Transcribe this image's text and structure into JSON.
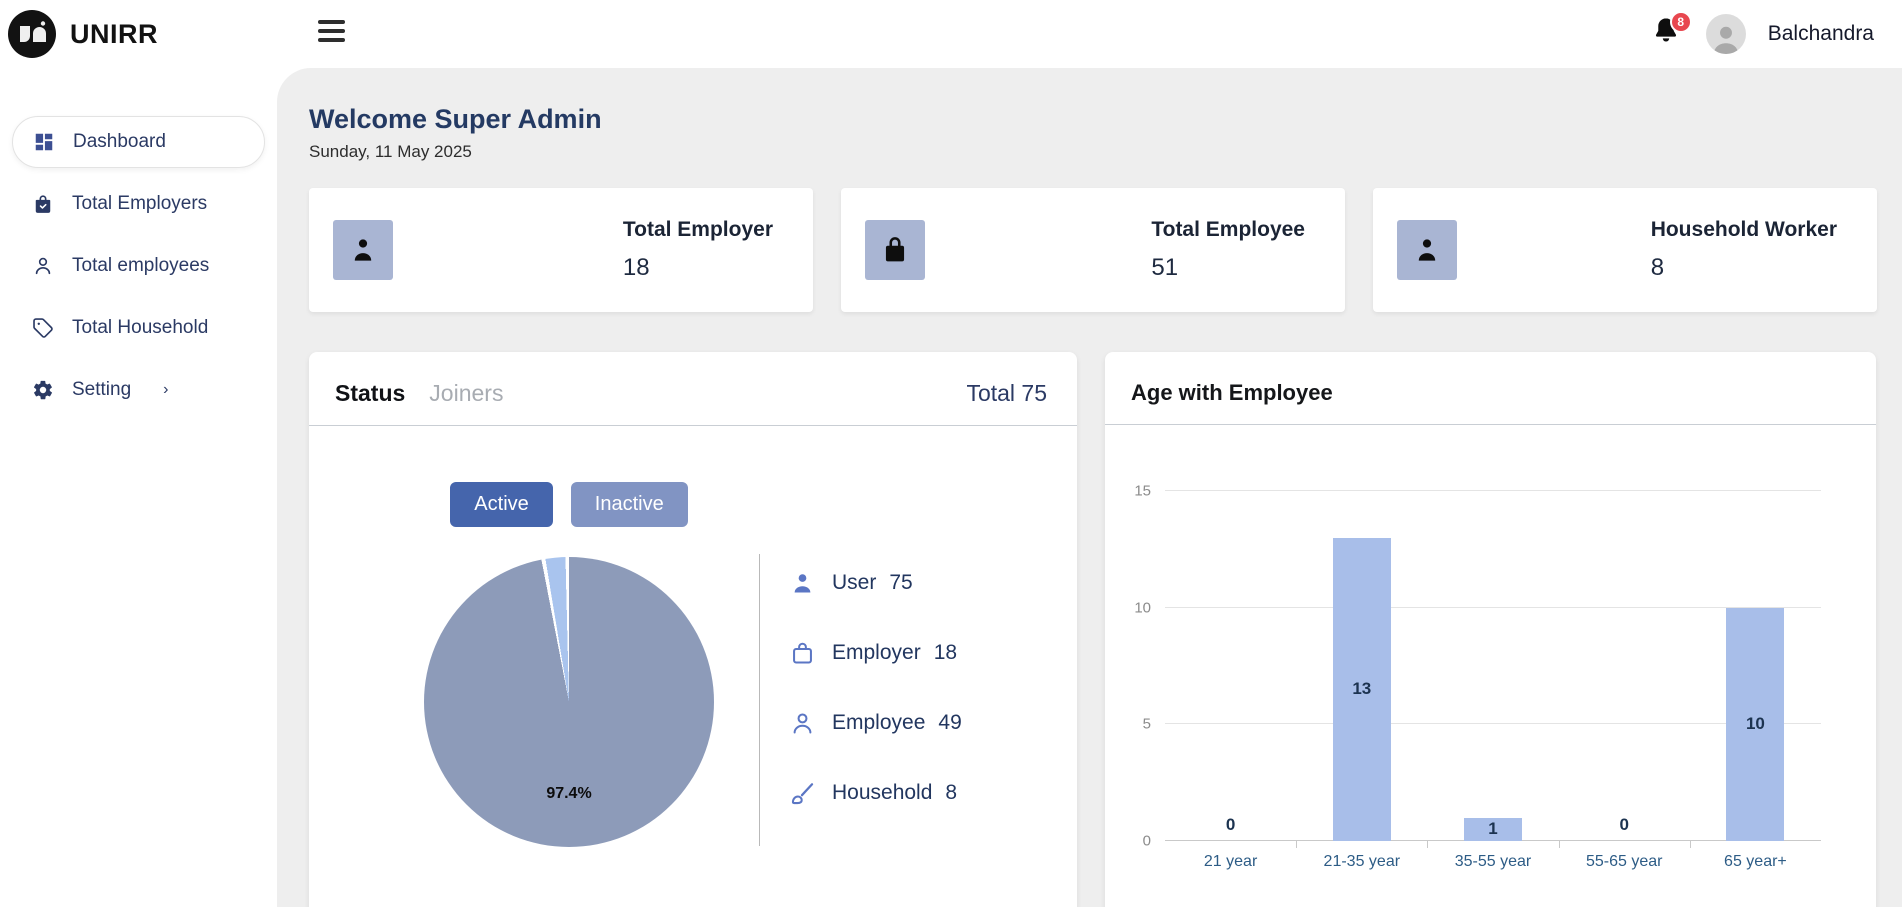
{
  "topbar": {
    "brand": "UNIRR",
    "notification_count": "8",
    "user_name": "Balchandra"
  },
  "sidebar": {
    "items": [
      {
        "id": "dashboard",
        "label": "Dashboard",
        "active": true
      },
      {
        "id": "total-employers",
        "label": "Total Employers"
      },
      {
        "id": "total-employees",
        "label": "Total employees"
      },
      {
        "id": "total-household",
        "label": "Total Household"
      },
      {
        "id": "setting",
        "label": "Setting",
        "chevron": "›"
      }
    ]
  },
  "page": {
    "heading": "Welcome Super Admin",
    "date": "Sunday, 11 May 2025"
  },
  "stat_cards": [
    {
      "title": "Total Employer",
      "value": "18",
      "icon": "person-icon"
    },
    {
      "title": "Total Employee",
      "value": "51",
      "icon": "bag-icon"
    },
    {
      "title": "Household Worker",
      "value": "8",
      "icon": "person-icon"
    }
  ],
  "status_panel": {
    "title": "Status",
    "subtitle": "Joiners",
    "total_label": "Total 75",
    "active_button": "Active",
    "inactive_button": "Inactive",
    "active_color": "#4565ac",
    "inactive_color": "#8194c3",
    "legend": [
      {
        "label": "User",
        "value": "75",
        "icon": "user-icon"
      },
      {
        "label": "Employer",
        "value": "18",
        "icon": "bag-icon"
      },
      {
        "label": "Employee",
        "value": "49",
        "icon": "person-icon"
      },
      {
        "label": "Household",
        "value": "8",
        "icon": "brush-icon"
      }
    ]
  },
  "age_panel": {
    "title": "Age with Employee"
  },
  "chart_data": [
    {
      "type": "pie",
      "title": "Status Joiners",
      "slices": [
        {
          "label": "Active",
          "value": 97.4,
          "color": "#8d9bb9"
        },
        {
          "label": "Inactive",
          "value": 2.6,
          "color": "#a9c4ee"
        }
      ],
      "annotation": "97.4%",
      "legend_position": "right"
    },
    {
      "type": "bar",
      "title": "Age with Employee",
      "categories": [
        "21 year",
        "21-35 year",
        "35-55 year",
        "55-65 year",
        "65 year+"
      ],
      "values": [
        0,
        13,
        1,
        0,
        10
      ],
      "ylim": [
        0,
        15
      ],
      "yticks": [
        0,
        5,
        10,
        15
      ],
      "bar_color": "#a8bee9",
      "grid": true,
      "xlabel": "",
      "ylabel": ""
    }
  ]
}
